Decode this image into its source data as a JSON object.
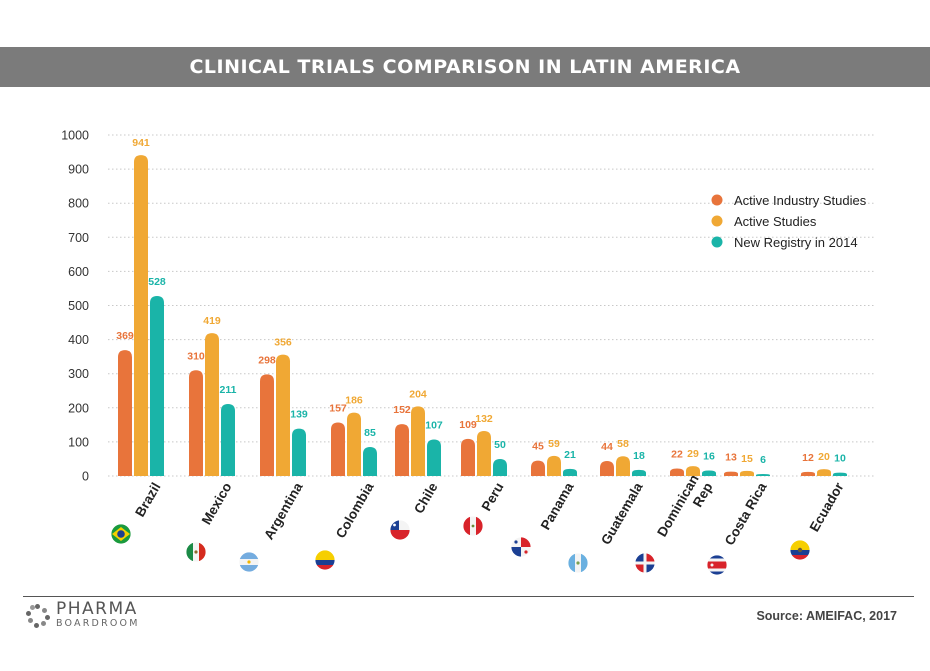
{
  "title": "CLINICAL TRIALS COMPARISON IN LATIN AMERICA",
  "source": "Source: AMEIFAC, 2017",
  "brand": {
    "main": "PHARMA",
    "sub": "BOARDROOM"
  },
  "colors": {
    "active_industry": "#e8743b",
    "active": "#f0a834",
    "new_registry": "#1ab4a8",
    "grid": "#c8c8c8",
    "axis_text": "#333333"
  },
  "chart_data": {
    "type": "bar",
    "title": "CLINICAL TRIALS COMPARISON IN LATIN AMERICA",
    "xlabel": "",
    "ylabel": "",
    "ylim": [
      0,
      1000
    ],
    "yticks": [
      0,
      100,
      200,
      300,
      400,
      500,
      600,
      700,
      800,
      900,
      1000
    ],
    "grid": true,
    "legend_position": "top-right",
    "categories": [
      "Brazil",
      "Mexico",
      "Argentina",
      "Colombia",
      "Chile",
      "Peru",
      "Panama",
      "Guatemala",
      "Dominican Rep",
      "Costa Rica",
      "Ecuador"
    ],
    "category_labels": [
      [
        "Brazil"
      ],
      [
        "Mexico"
      ],
      [
        "Argentina"
      ],
      [
        "Colombia"
      ],
      [
        "Chile"
      ],
      [
        "Peru"
      ],
      [
        "Panama"
      ],
      [
        "Guatemala"
      ],
      [
        "Dominican",
        "Rep"
      ],
      [
        "Costa Rica"
      ],
      [
        "Ecuador"
      ]
    ],
    "series": [
      {
        "name": "Active Industry Studies",
        "color": "#e8743b",
        "values": [
          369,
          310,
          298,
          157,
          152,
          109,
          45,
          44,
          22,
          13,
          12
        ]
      },
      {
        "name": "Active Studies",
        "color": "#f0a834",
        "values": [
          941,
          419,
          356,
          186,
          204,
          132,
          59,
          58,
          29,
          15,
          20
        ]
      },
      {
        "name": "New Registry in 2014",
        "color": "#1ab4a8",
        "values": [
          528,
          211,
          139,
          85,
          107,
          50,
          21,
          18,
          16,
          6,
          10
        ]
      }
    ],
    "flag_icons": [
      "brazil-flag-icon",
      "mexico-flag-icon",
      "argentina-flag-icon",
      "colombia-flag-icon",
      "chile-flag-icon",
      "peru-flag-icon",
      "panama-flag-icon",
      "guatemala-flag-icon",
      "dominican-republic-flag-icon",
      "costa-rica-flag-icon",
      "ecuador-flag-icon"
    ]
  }
}
